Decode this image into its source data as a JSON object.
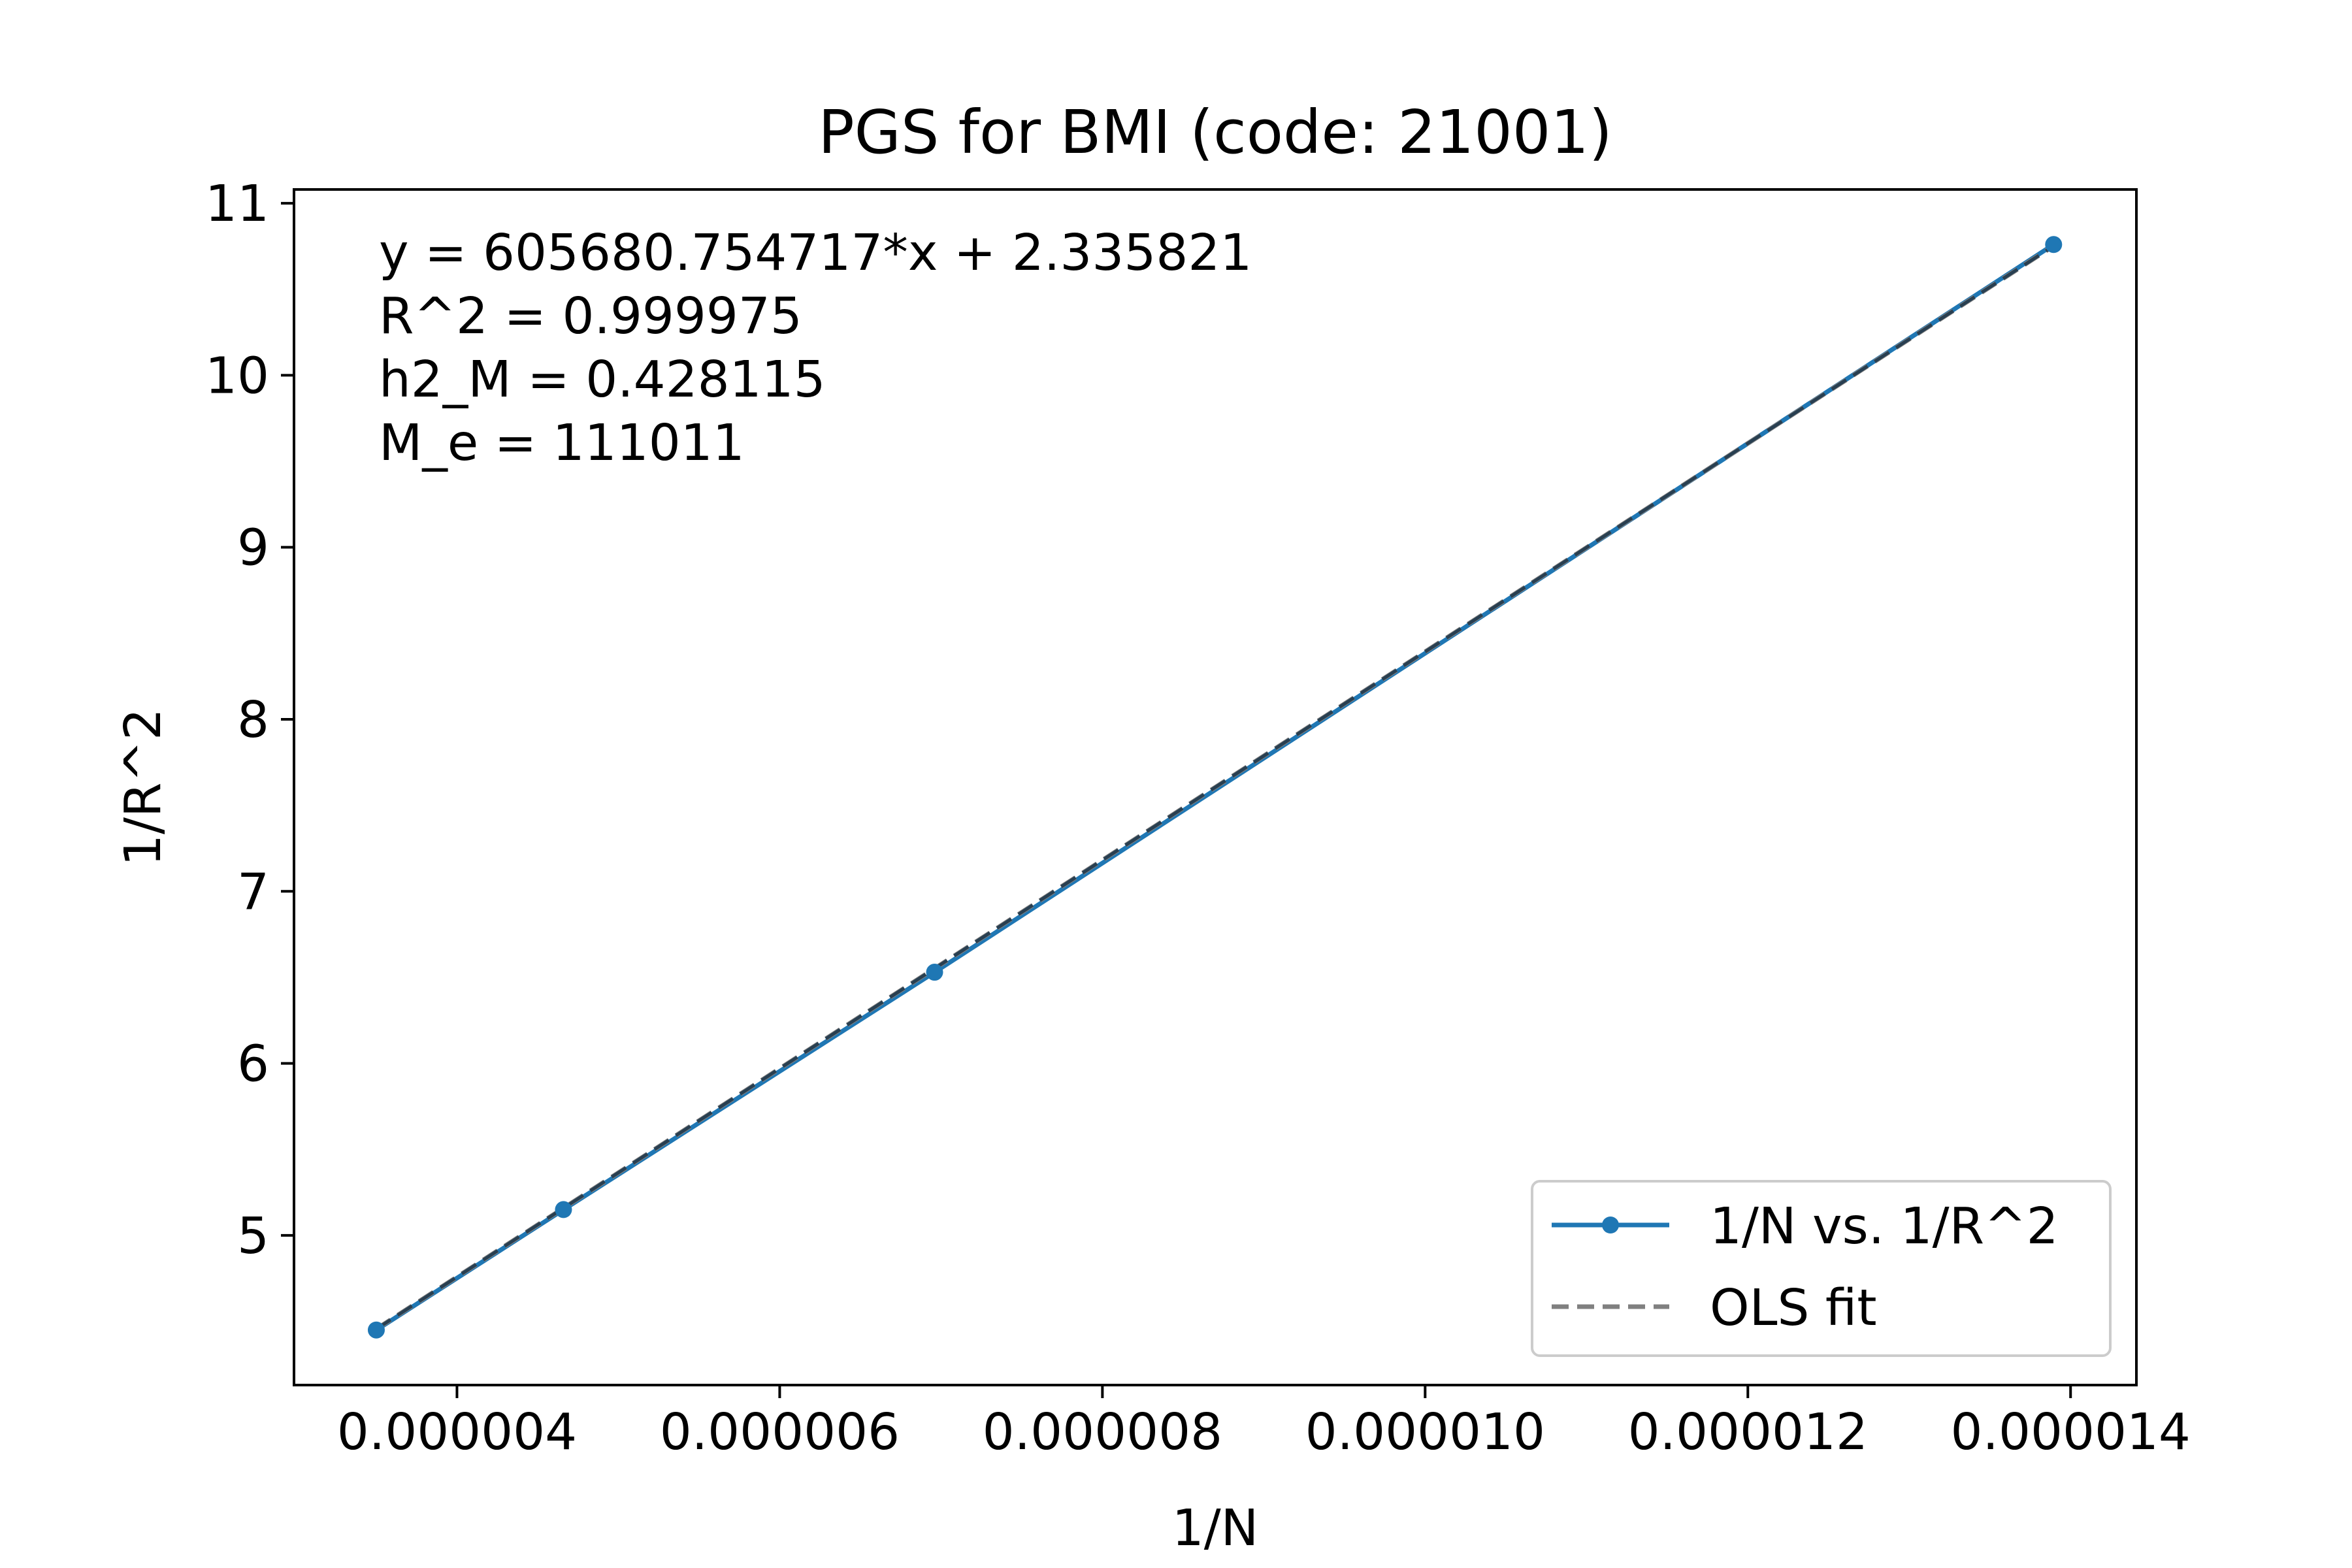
{
  "chart_data": {
    "type": "line",
    "title": "PGS for BMI (code: 21001)",
    "xlabel": "1/N",
    "ylabel": "1/R^2",
    "xlim": [
      2.99e-06,
      1.4408e-05
    ],
    "ylim": [
      4.13,
      11.08
    ],
    "xticks": [
      {
        "value": 4e-06,
        "label": "0.000004"
      },
      {
        "value": 6e-06,
        "label": "0.000006"
      },
      {
        "value": 8e-06,
        "label": "0.000008"
      },
      {
        "value": 1e-05,
        "label": "0.000010"
      },
      {
        "value": 1.2e-05,
        "label": "0.000012"
      },
      {
        "value": 1.4e-05,
        "label": "0.000014"
      }
    ],
    "yticks": [
      {
        "value": 5,
        "label": "5"
      },
      {
        "value": 6,
        "label": "6"
      },
      {
        "value": 7,
        "label": "7"
      },
      {
        "value": 8,
        "label": "8"
      },
      {
        "value": 9,
        "label": "9"
      },
      {
        "value": 10,
        "label": "10"
      },
      {
        "value": 11,
        "label": "11"
      }
    ],
    "grid": false,
    "legend_position": "lower-right",
    "series": [
      {
        "name": "1/N vs. 1/R^2",
        "style": "solid-with-markers",
        "color": "#1f77b4",
        "x": [
          3.5e-06,
          4.66e-06,
          6.96e-06,
          1.3895e-05
        ],
        "y": [
          4.45,
          5.15,
          6.53,
          10.76
        ]
      },
      {
        "name": "OLS fit",
        "style": "dashed",
        "color": "#808080",
        "slope": 605680.754717,
        "intercept": 2.335821,
        "x_range": [
          3.5e-06,
          1.3895e-05
        ]
      }
    ],
    "annotations": [
      "y = 605680.754717*x + 2.335821",
      "R^2 = 0.999975",
      "h2_M = 0.428115",
      "M_e = 111011"
    ]
  }
}
